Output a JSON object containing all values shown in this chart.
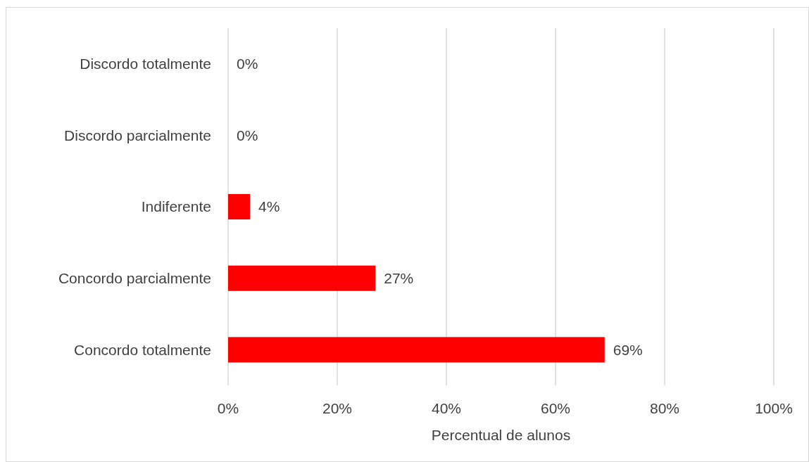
{
  "chart_data": {
    "type": "bar",
    "orientation": "horizontal",
    "xlabel": "Percentual de alunos",
    "categories": [
      "Discordo totalmente",
      "Discordo parcialmente",
      "Indiferente",
      "Concordo parcialmente",
      "Concordo totalmente"
    ],
    "values": [
      0,
      0,
      4,
      27,
      69
    ],
    "color": "#ff0000",
    "value_labels": [
      "0%",
      "0%",
      "4%",
      "27%",
      "69%"
    ],
    "xlim": [
      0,
      100
    ],
    "xticks": [
      {
        "value": 0,
        "label": "0%"
      },
      {
        "value": 20,
        "label": "20%"
      },
      {
        "value": 40,
        "label": "40%"
      },
      {
        "value": 60,
        "label": "60%"
      },
      {
        "value": 80,
        "label": "80%"
      },
      {
        "value": 100,
        "label": "100%"
      }
    ],
    "grid": "x"
  }
}
